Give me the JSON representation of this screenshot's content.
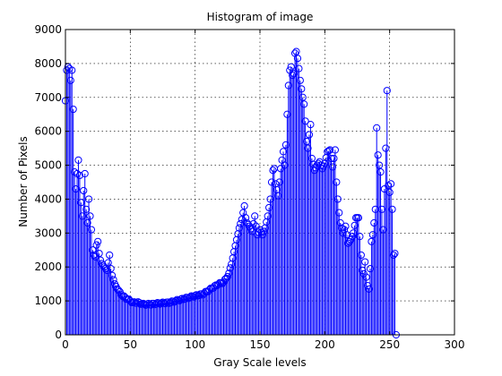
{
  "chart_data": {
    "type": "stem",
    "title": "Histogram of image",
    "xlabel": "Gray Scale levels",
    "ylabel": "Number of Pixels",
    "xlim": [
      0,
      300
    ],
    "ylim": [
      0,
      9000
    ],
    "xticks": [
      0,
      50,
      100,
      150,
      200,
      250,
      300
    ],
    "yticks": [
      0,
      1000,
      2000,
      3000,
      4000,
      5000,
      6000,
      7000,
      8000,
      9000
    ],
    "grid": true,
    "series_color": "#0000ff",
    "control_points": [
      [
        0,
        6900
      ],
      [
        1,
        7800
      ],
      [
        2,
        7900
      ],
      [
        3,
        7850
      ],
      [
        4,
        7500
      ],
      [
        5,
        7800
      ],
      [
        6,
        6650
      ],
      [
        7,
        4800
      ],
      [
        8,
        4300
      ],
      [
        9,
        4750
      ],
      [
        10,
        5150
      ],
      [
        11,
        4700
      ],
      [
        12,
        3900
      ],
      [
        13,
        3500
      ],
      [
        14,
        4250
      ],
      [
        15,
        4750
      ],
      [
        16,
        3700
      ],
      [
        17,
        3300
      ],
      [
        18,
        4000
      ],
      [
        19,
        3500
      ],
      [
        20,
        3100
      ],
      [
        21,
        2500
      ],
      [
        22,
        2350
      ],
      [
        23,
        2300
      ],
      [
        24,
        2650
      ],
      [
        25,
        2750
      ],
      [
        26,
        2400
      ],
      [
        27,
        2200
      ],
      [
        28,
        2100
      ],
      [
        30,
        2000
      ],
      [
        32,
        1900
      ],
      [
        34,
        2350
      ],
      [
        35,
        1950
      ],
      [
        36,
        1750
      ],
      [
        38,
        1500
      ],
      [
        40,
        1350
      ],
      [
        44,
        1150
      ],
      [
        48,
        1050
      ],
      [
        50,
        1000
      ],
      [
        52,
        950
      ],
      [
        56,
        950
      ],
      [
        60,
        900
      ],
      [
        66,
        900
      ],
      [
        72,
        930
      ],
      [
        80,
        950
      ],
      [
        90,
        1050
      ],
      [
        100,
        1150
      ],
      [
        106,
        1200
      ],
      [
        110,
        1300
      ],
      [
        114,
        1400
      ],
      [
        118,
        1500
      ],
      [
        122,
        1550
      ],
      [
        126,
        1800
      ],
      [
        128,
        2100
      ],
      [
        130,
        2450
      ],
      [
        132,
        2800
      ],
      [
        134,
        3150
      ],
      [
        136,
        3400
      ],
      [
        137,
        3600
      ],
      [
        138,
        3800
      ],
      [
        139,
        3450
      ],
      [
        140,
        3300
      ],
      [
        142,
        3200
      ],
      [
        144,
        3050
      ],
      [
        146,
        3500
      ],
      [
        147,
        3200
      ],
      [
        148,
        2950
      ],
      [
        150,
        3100
      ],
      [
        152,
        2950
      ],
      [
        154,
        3150
      ],
      [
        156,
        3500
      ],
      [
        158,
        4000
      ],
      [
        159,
        4500
      ],
      [
        160,
        4850
      ],
      [
        161,
        4900
      ],
      [
        162,
        4450
      ],
      [
        164,
        4100
      ],
      [
        166,
        4900
      ],
      [
        168,
        5400
      ],
      [
        169,
        5000
      ],
      [
        170,
        5600
      ],
      [
        171,
        6500
      ],
      [
        172,
        7350
      ],
      [
        173,
        7800
      ],
      [
        174,
        7900
      ],
      [
        175,
        7650
      ],
      [
        176,
        7700
      ],
      [
        177,
        8300
      ],
      [
        178,
        8350
      ],
      [
        179,
        8150
      ],
      [
        180,
        7850
      ],
      [
        181,
        7500
      ],
      [
        182,
        7250
      ],
      [
        183,
        7000
      ],
      [
        184,
        6800
      ],
      [
        185,
        6300
      ],
      [
        186,
        5700
      ],
      [
        187,
        5500
      ],
      [
        188,
        5900
      ],
      [
        189,
        6200
      ],
      [
        190,
        5200
      ],
      [
        192,
        4850
      ],
      [
        194,
        5000
      ],
      [
        196,
        5100
      ],
      [
        198,
        4900
      ],
      [
        200,
        5050
      ],
      [
        202,
        5400
      ],
      [
        204,
        5450
      ],
      [
        205,
        5200
      ],
      [
        206,
        4950
      ],
      [
        208,
        5450
      ],
      [
        209,
        4500
      ],
      [
        210,
        4000
      ],
      [
        211,
        3600
      ],
      [
        212,
        3300
      ],
      [
        214,
        3000
      ],
      [
        216,
        3200
      ],
      [
        218,
        2700
      ],
      [
        220,
        2800
      ],
      [
        222,
        3000
      ],
      [
        224,
        3450
      ],
      [
        226,
        3450
      ],
      [
        227,
        2900
      ],
      [
        228,
        2350
      ],
      [
        229,
        1900
      ],
      [
        230,
        1800
      ],
      [
        231,
        2150
      ],
      [
        232,
        1700
      ],
      [
        233,
        1450
      ],
      [
        234,
        1350
      ],
      [
        235,
        1950
      ],
      [
        236,
        2750
      ],
      [
        237,
        2950
      ],
      [
        238,
        3300
      ],
      [
        239,
        3700
      ],
      [
        240,
        6100
      ],
      [
        241,
        5300
      ],
      [
        242,
        5000
      ],
      [
        243,
        4800
      ],
      [
        244,
        3700
      ],
      [
        245,
        3100
      ],
      [
        246,
        4300
      ],
      [
        247,
        5500
      ],
      [
        248,
        7200
      ],
      [
        249,
        4400
      ],
      [
        250,
        4200
      ],
      [
        251,
        4450
      ],
      [
        252,
        3700
      ],
      [
        253,
        2350
      ],
      [
        254,
        2400
      ],
      [
        255,
        0
      ]
    ]
  }
}
